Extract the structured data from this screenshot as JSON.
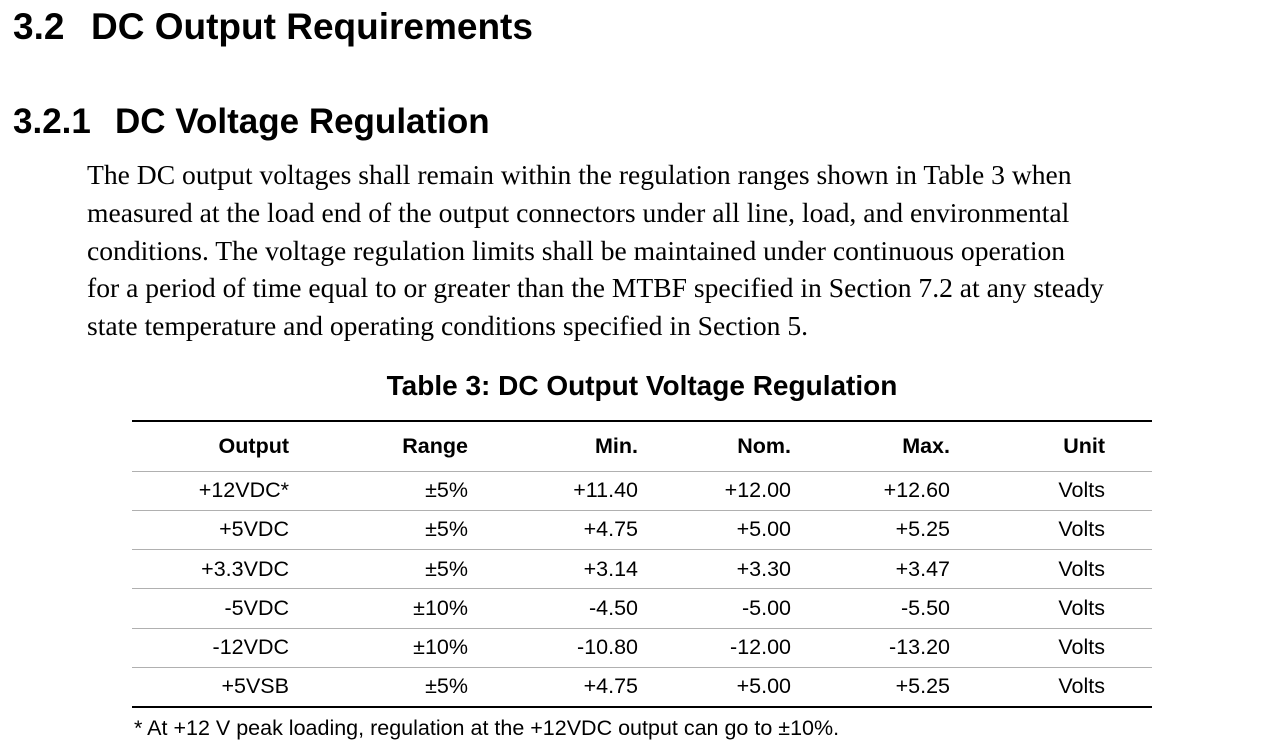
{
  "section": {
    "number": "3.2",
    "title": "DC Output Requirements"
  },
  "subsection": {
    "number": "3.2.1",
    "title": "DC Voltage Regulation"
  },
  "paragraph": {
    "lines": [
      "The DC output voltages shall remain within the regulation ranges shown in Table 3 when",
      "measured at the load end of the output connectors under all line, load, and environmental",
      "conditions.  The voltage regulation limits shall be maintained under continuous operation",
      "for a period of time equal to or greater than the MTBF specified in Section 7.2 at any steady",
      "state temperature and operating conditions specified in Section 5."
    ]
  },
  "table": {
    "caption": "Table 3:  DC Output Voltage Regulation",
    "headers": [
      "Output",
      "Range",
      "Min.",
      "Nom.",
      "Max.",
      "Unit"
    ],
    "rows": [
      [
        "+12VDC*",
        "±5%",
        "+11.40",
        "+12.00",
        "+12.60",
        "Volts"
      ],
      [
        "+5VDC",
        "±5%",
        "+4.75",
        "+5.00",
        "+5.25",
        "Volts"
      ],
      [
        "+3.3VDC",
        "±5%",
        "+3.14",
        "+3.30",
        "+3.47",
        "Volts"
      ],
      [
        "-5VDC",
        "±10%",
        "-4.50",
        "-5.00",
        "-5.50",
        "Volts"
      ],
      [
        "-12VDC",
        "±10%",
        "-10.80",
        "-12.00",
        "-13.20",
        "Volts"
      ],
      [
        "+5VSB",
        "±5%",
        "+4.75",
        "+5.00",
        "+5.25",
        "Volts"
      ]
    ],
    "footnote": "* At +12 V peak loading, regulation at the +12VDC output can go to ±10%."
  }
}
